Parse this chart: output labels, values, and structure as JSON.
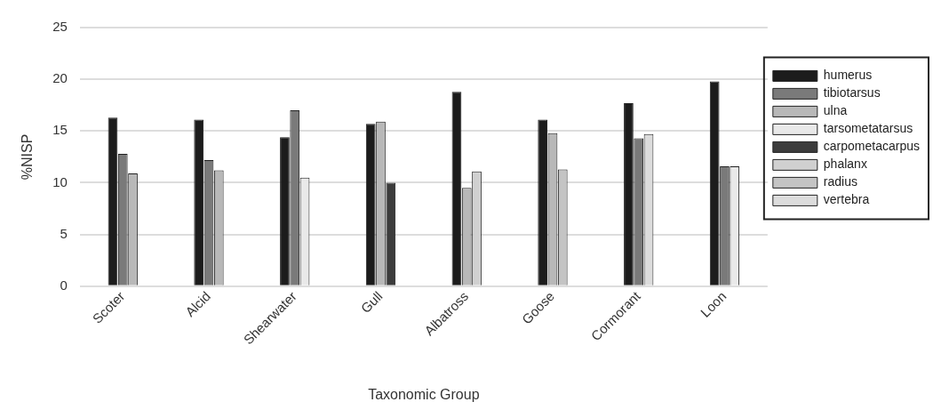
{
  "chart_data": {
    "type": "bar",
    "xlabel": "Taxonomic Group",
    "ylabel": "%NISP",
    "categories": [
      "Scoter",
      "Alcid",
      "Shearwater",
      "Gull",
      "Albatross",
      "Goose",
      "Cormorant",
      "Loon"
    ],
    "series": [
      {
        "name": "humerus",
        "color": "#1c1c1c",
        "values": [
          16.3,
          16.1,
          14.4,
          15.7,
          18.8,
          16.1,
          17.7,
          19.8
        ]
      },
      {
        "name": "tibiotarsus",
        "color": "#7a7a7a",
        "values": [
          12.8,
          12.2,
          17.0,
          null,
          null,
          null,
          14.3,
          11.6
        ]
      },
      {
        "name": "ulna",
        "color": "#b8b8b8",
        "values": [
          10.9,
          11.2,
          null,
          15.9,
          9.5,
          14.8,
          null,
          null
        ]
      },
      {
        "name": "tarsometatarsus",
        "color": "#e9e9e9",
        "values": [
          null,
          null,
          10.5,
          null,
          null,
          null,
          null,
          11.6
        ]
      },
      {
        "name": "carpometacarpus",
        "color": "#3c3c3c",
        "values": [
          null,
          null,
          null,
          10.0,
          null,
          null,
          null,
          null
        ]
      },
      {
        "name": "phalanx",
        "color": "#d0d0d0",
        "values": [
          null,
          null,
          null,
          null,
          11.1,
          null,
          null,
          null
        ]
      },
      {
        "name": "radius",
        "color": "#c4c4c4",
        "values": [
          null,
          null,
          null,
          null,
          null,
          11.3,
          null,
          null
        ]
      },
      {
        "name": "vertebra",
        "color": "#dcdcdc",
        "values": [
          null,
          null,
          null,
          null,
          null,
          null,
          14.7,
          null
        ]
      }
    ],
    "ylim": [
      0,
      25
    ],
    "yticks": [
      0,
      5,
      10,
      15,
      20,
      25
    ],
    "grid": "y",
    "legend": "right"
  }
}
